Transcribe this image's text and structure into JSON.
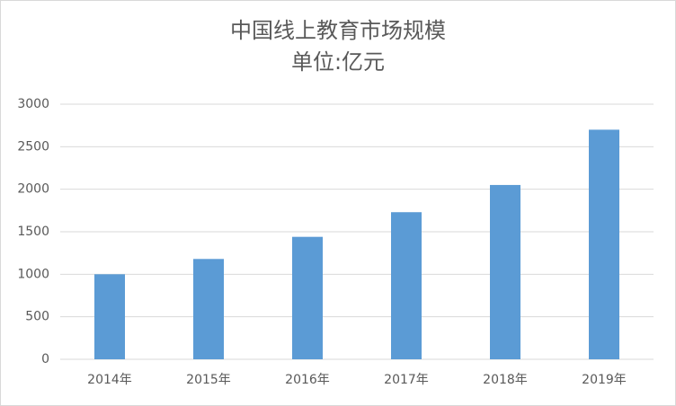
{
  "chart_data": {
    "type": "bar",
    "title": "中国线上教育市场规模",
    "subtitle": "单位:亿元",
    "categories": [
      "2014年",
      "2015年",
      "2016年",
      "2017年",
      "2018年",
      "2019年"
    ],
    "values": [
      1000,
      1180,
      1440,
      1730,
      2050,
      2700
    ],
    "color": "#5b9bd5",
    "ylim": [
      0,
      3000
    ],
    "yticks": [
      0,
      500,
      1000,
      1500,
      2000,
      2500,
      3000
    ],
    "grid": true
  }
}
